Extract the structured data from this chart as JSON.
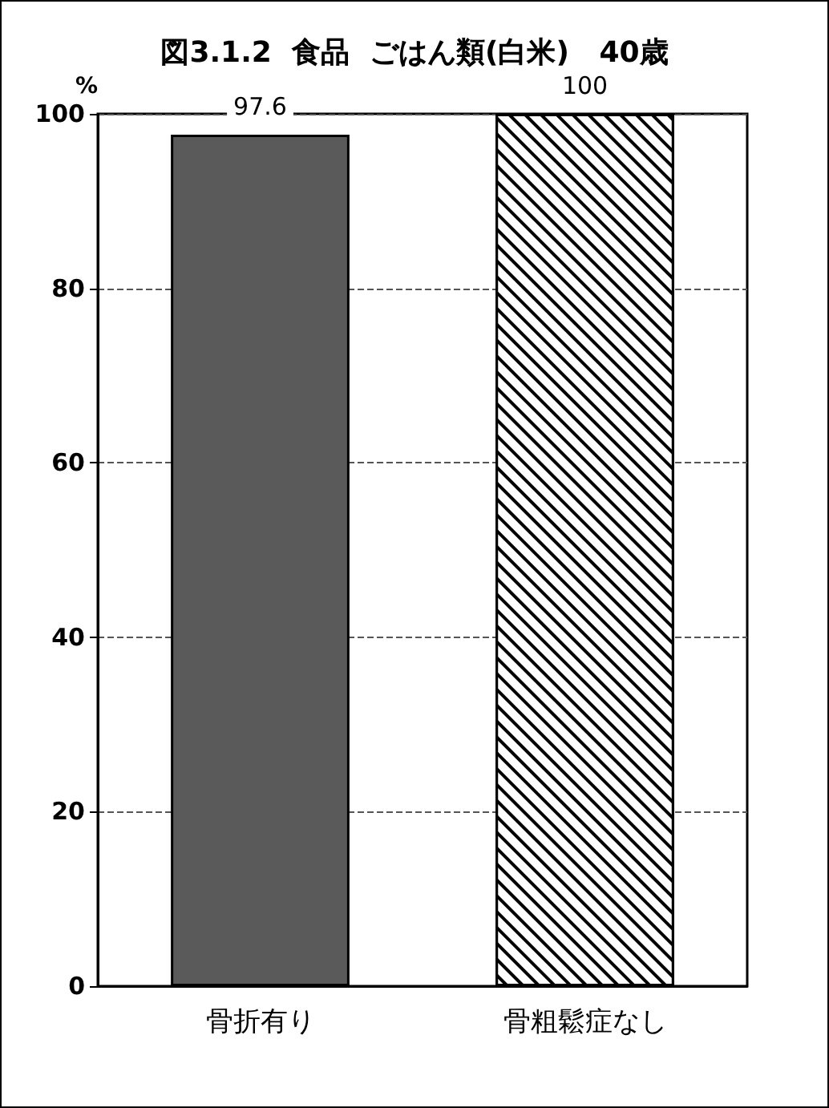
{
  "chart_data": {
    "type": "bar",
    "title": "図3.1.2  食品  ごはん類(白米)   40歳",
    "ylabel": "%",
    "categories": [
      "骨折有り",
      "骨粗鬆症なし"
    ],
    "values": [
      97.6,
      100
    ],
    "colors": [
      "#5a5a5a",
      "#ffffff"
    ],
    "ylim": [
      0,
      100
    ],
    "yticks": [
      0,
      20,
      40,
      60,
      80,
      100
    ],
    "grid": "y",
    "data_labels": true
  }
}
